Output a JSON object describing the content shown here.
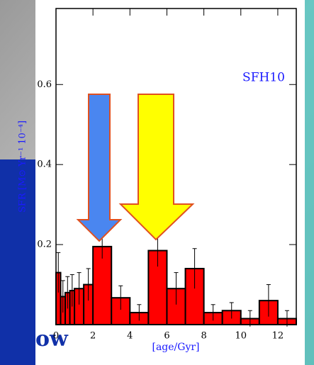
{
  "chart_data": {
    "type": "histogram",
    "title": "SFH10",
    "xlabel": "[age/Gyr]",
    "ylabel": "SFR [M⊙ Yr⁻¹ 10⁻⁴]",
    "annotation": "now",
    "bins": [
      0,
      0.25,
      0.5,
      0.75,
      1,
      1.5,
      2,
      3,
      4,
      5,
      6,
      7,
      8,
      9,
      10,
      11,
      12,
      13
    ],
    "values": [
      0.13,
      0.07,
      0.08,
      0.085,
      0.09,
      0.1,
      0.195,
      0.067,
      0.03,
      0.185,
      0.09,
      0.14,
      0.03,
      0.035,
      0.015,
      0.06,
      0.015
    ],
    "errors": [
      0.05,
      0.04,
      0.04,
      0.04,
      0.04,
      0.04,
      0.03,
      0.03,
      0.02,
      0.04,
      0.04,
      0.05,
      0.02,
      0.02,
      0.02,
      0.04,
      0.02
    ],
    "color": "#ff0000",
    "xlim": [
      0,
      13
    ],
    "ylim": [
      0,
      0.79
    ],
    "xticks": [
      0,
      2,
      4,
      6,
      8,
      10,
      12
    ],
    "yticks": [
      0.2,
      0.4,
      0.6
    ]
  }
}
